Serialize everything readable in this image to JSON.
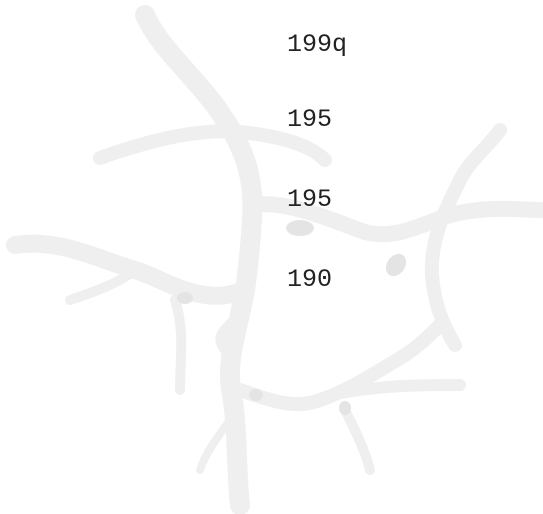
{
  "lines": [
    "199q",
    "195",
    "195",
    "190"
  ]
}
